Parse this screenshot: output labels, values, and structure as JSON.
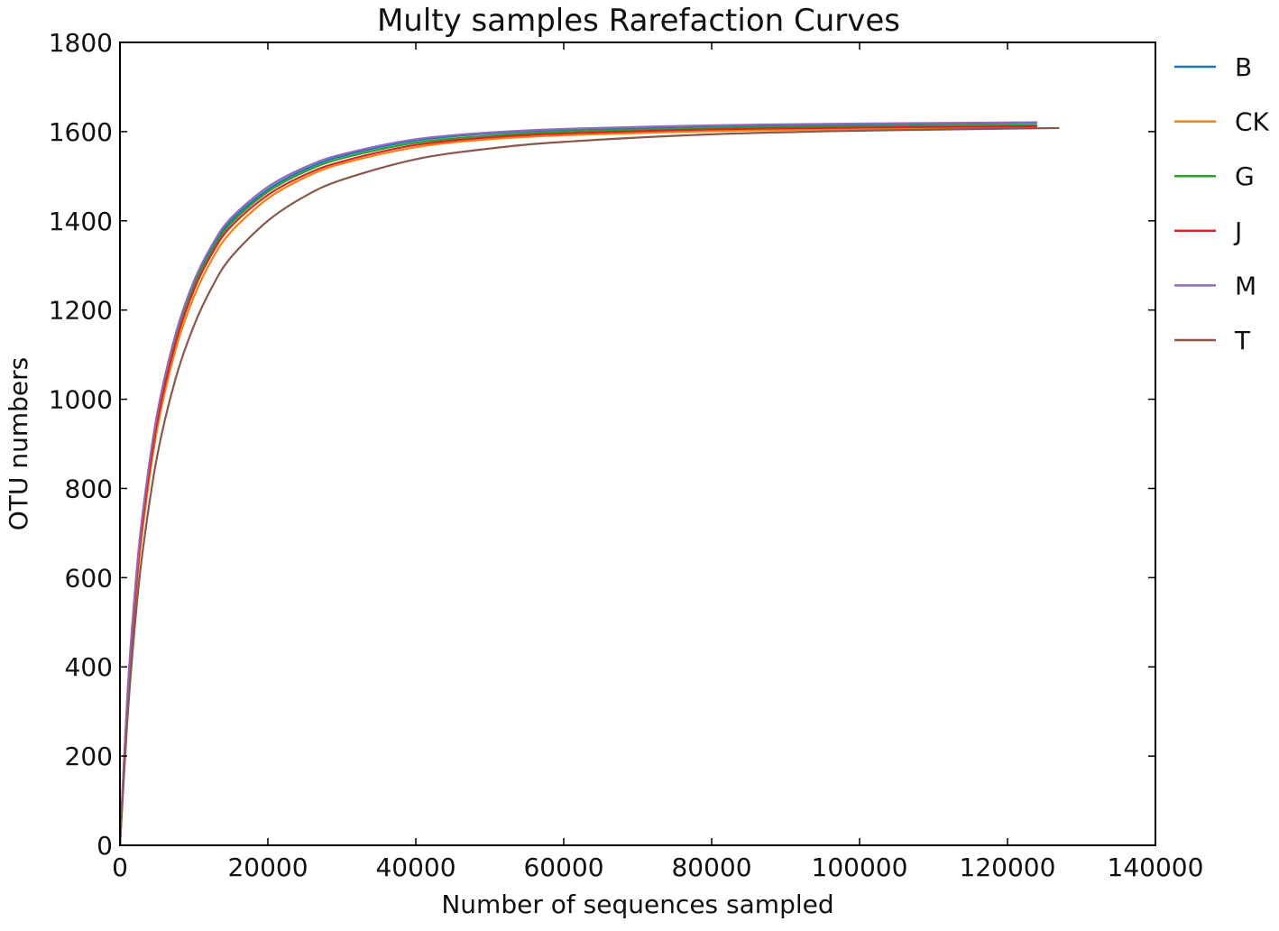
{
  "chart_data": {
    "type": "line",
    "title": "Multy samples Rarefaction Curves",
    "xlabel": "Number of sequences sampled",
    "ylabel": "OTU numbers",
    "xlim": [
      0,
      140000
    ],
    "ylim": [
      0,
      1800
    ],
    "xticks": [
      0,
      20000,
      40000,
      60000,
      80000,
      100000,
      120000,
      140000
    ],
    "yticks": [
      0,
      200,
      400,
      600,
      800,
      1000,
      1200,
      1400,
      1600,
      1800
    ],
    "grid": false,
    "legend_position": "outside-right",
    "series": [
      {
        "name": "B",
        "color": "#1f77b4",
        "x": [
          0,
          1000,
          2000,
          3000,
          5000,
          7500,
          10000,
          12500,
          15000,
          20000,
          25000,
          30000,
          40000,
          50000,
          60000,
          80000,
          100000,
          124000
        ],
        "y": [
          0,
          330,
          560,
          730,
          960,
          1140,
          1260,
          1340,
          1400,
          1470,
          1515,
          1545,
          1580,
          1596,
          1604,
          1612,
          1616,
          1619
        ]
      },
      {
        "name": "CK",
        "color": "#ff7f0e",
        "x": [
          0,
          1000,
          2000,
          3000,
          5000,
          7500,
          10000,
          12500,
          15000,
          20000,
          25000,
          30000,
          40000,
          50000,
          60000,
          80000,
          100000,
          124000
        ],
        "y": [
          0,
          310,
          530,
          700,
          930,
          1110,
          1230,
          1315,
          1375,
          1450,
          1497,
          1528,
          1565,
          1583,
          1592,
          1601,
          1606,
          1610
        ]
      },
      {
        "name": "G",
        "color": "#2ca02c",
        "x": [
          0,
          1000,
          2000,
          3000,
          5000,
          7500,
          10000,
          12500,
          15000,
          20000,
          25000,
          30000,
          40000,
          50000,
          60000,
          80000,
          100000,
          124000
        ],
        "y": [
          0,
          325,
          552,
          722,
          952,
          1132,
          1252,
          1335,
          1394,
          1465,
          1510,
          1540,
          1575,
          1591,
          1600,
          1608,
          1612,
          1614
        ]
      },
      {
        "name": "J",
        "color": "#d62728",
        "x": [
          0,
          1000,
          2000,
          3000,
          5000,
          7500,
          10000,
          12500,
          15000,
          20000,
          25000,
          30000,
          40000,
          50000,
          60000,
          80000,
          100000,
          124000
        ],
        "y": [
          0,
          320,
          545,
          715,
          945,
          1125,
          1245,
          1328,
          1387,
          1458,
          1503,
          1533,
          1570,
          1587,
          1596,
          1605,
          1609,
          1612
        ]
      },
      {
        "name": "M",
        "color": "#9467bd",
        "x": [
          0,
          1000,
          2000,
          3000,
          5000,
          7500,
          10000,
          12500,
          15000,
          20000,
          25000,
          30000,
          40000,
          50000,
          60000,
          80000,
          100000,
          124000
        ],
        "y": [
          0,
          335,
          565,
          735,
          965,
          1145,
          1265,
          1347,
          1406,
          1476,
          1520,
          1549,
          1583,
          1598,
          1606,
          1614,
          1618,
          1621
        ]
      },
      {
        "name": "T",
        "color": "#8c564b",
        "x": [
          0,
          1000,
          2000,
          3000,
          5000,
          7500,
          10000,
          12500,
          15000,
          20000,
          25000,
          30000,
          40000,
          50000,
          60000,
          80000,
          100000,
          127000
        ],
        "y": [
          0,
          280,
          490,
          650,
          870,
          1045,
          1165,
          1253,
          1318,
          1400,
          1455,
          1492,
          1538,
          1562,
          1577,
          1594,
          1602,
          1608
        ]
      }
    ]
  }
}
